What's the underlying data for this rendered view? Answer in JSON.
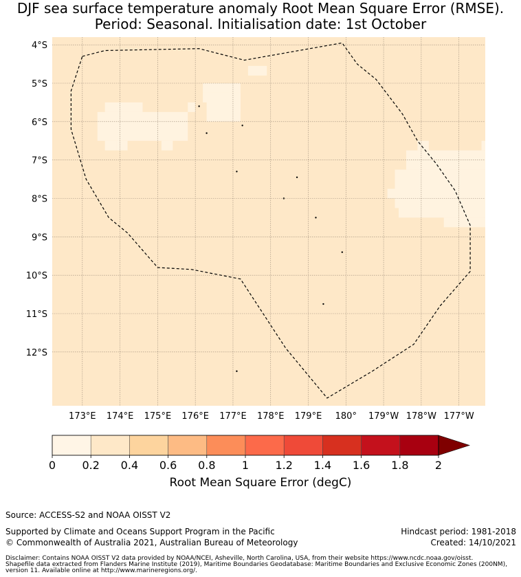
{
  "title": {
    "line1": "DJF sea surface temperature anomaly Root Mean Square Error (RMSE).",
    "line2": "Period: Seasonal. Initialisation date: 1st October"
  },
  "map": {
    "background_color": "#fee8c8",
    "patch_color": "#fff3e0",
    "lat_ticks": [
      "4°S",
      "5°S",
      "6°S",
      "7°S",
      "8°S",
      "9°S",
      "10°S",
      "11°S",
      "12°S"
    ],
    "lon_ticks": [
      "173°E",
      "174°E",
      "175°E",
      "176°E",
      "177°E",
      "178°E",
      "179°E",
      "180°",
      "179°W",
      "178°W",
      "177°W"
    ],
    "lon_range": [
      172.2,
      183.7
    ],
    "lat_range": [
      -13.4,
      -3.8
    ],
    "eez_boundary": [
      [
        173.0,
        -4.3
      ],
      [
        173.6,
        -4.15
      ],
      [
        176.1,
        -4.1
      ],
      [
        177.3,
        -4.4
      ],
      [
        179.9,
        -3.95
      ],
      [
        180.3,
        -4.5
      ],
      [
        180.8,
        -4.9
      ],
      [
        181.5,
        -5.8
      ],
      [
        181.9,
        -6.5
      ],
      [
        182.4,
        -7.1
      ],
      [
        182.9,
        -7.8
      ],
      [
        183.3,
        -8.7
      ],
      [
        183.3,
        -9.9
      ],
      [
        182.5,
        -10.8
      ],
      [
        181.8,
        -11.8
      ],
      [
        180.7,
        -12.5
      ],
      [
        179.5,
        -13.2
      ],
      [
        178.4,
        -11.9
      ],
      [
        177.2,
        -10.1
      ],
      [
        175.9,
        -9.85
      ],
      [
        175.0,
        -9.8
      ],
      [
        174.2,
        -8.9
      ],
      [
        173.7,
        -8.5
      ],
      [
        173.1,
        -7.5
      ],
      [
        172.7,
        -6.2
      ],
      [
        172.7,
        -5.2
      ],
      [
        173.0,
        -4.3
      ]
    ]
  },
  "colorbar": {
    "ticks": [
      "0",
      "0.2",
      "0.4",
      "0.6",
      "0.8",
      "1",
      "1.2",
      "1.4",
      "1.6",
      "1.8",
      "2"
    ],
    "colors": [
      "#fff5e6",
      "#fee8c8",
      "#fdd49e",
      "#fdbb84",
      "#fc8d59",
      "#fc6a4a",
      "#ef4a38",
      "#d7301f",
      "#c4111c",
      "#a80010"
    ],
    "extend_color": "#7f0000",
    "label": "Root Mean Square Error (degC)"
  },
  "footer": {
    "source": "Source: ACCESS-S2 and NOAA OISST V2",
    "support": "Supported by Climate and Oceans Support Program in the Pacific",
    "copyright": "© Commonwealth of Australia 2021, Australian Bureau of Meteorology",
    "hindcast": "Hindcast period: 1981-2018",
    "created": "Created: 14/10/2021",
    "disclaimer1": "Disclaimer: Contains NOAA OISST V2 data provided by NOAA/NCEI, Asheville, North Carolina, USA, from their website https://www.ncdc.noaa.gov/oisst.",
    "disclaimer2": "Shapefile data extracted from Flanders Marine Institute (2019), Maritime Boundaries Geodatabase: Maritime Boundaries and Exclusive Economic Zones (200NM),",
    "disclaimer3": "version 11. Available online at http://www.marineregions.org/."
  }
}
